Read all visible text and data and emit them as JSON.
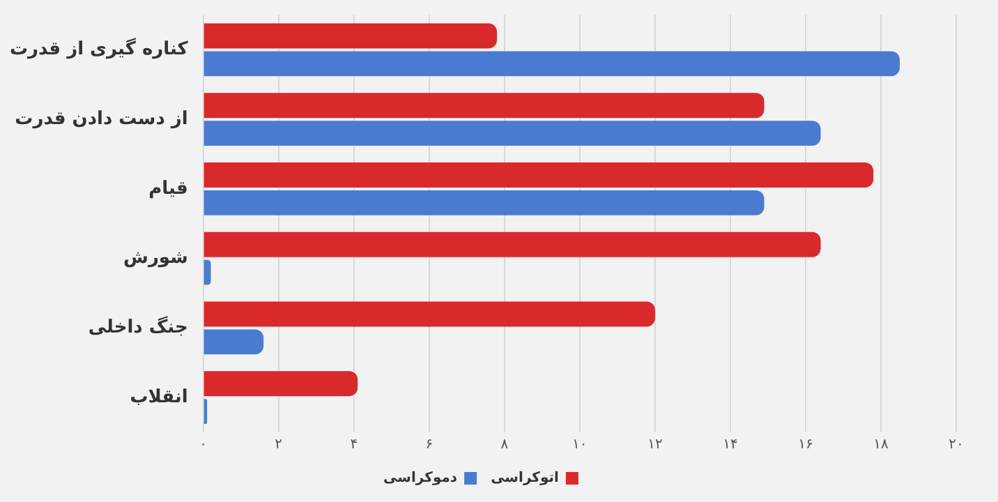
{
  "chart_data": {
    "type": "bar",
    "orientation": "horizontal",
    "categories": [
      "کناره گیری از قدرت",
      "از دست دادن قدرت",
      "قیام",
      "شورش",
      "جنگ داخلی",
      "انقلاب"
    ],
    "series": [
      {
        "name": "اتوکراسی",
        "color": "#d9292b",
        "values": [
          7.8,
          14.9,
          17.8,
          16.4,
          12,
          4.1
        ]
      },
      {
        "name": "دموکراسی",
        "color": "#4a7bd0",
        "values": [
          18.5,
          16.4,
          14.9,
          0.2,
          1.6,
          0.1
        ]
      }
    ],
    "xlim": [
      0,
      20
    ],
    "xticks": [
      {
        "value": 0,
        "label": "۰"
      },
      {
        "value": 2,
        "label": "۲"
      },
      {
        "value": 4,
        "label": "۴"
      },
      {
        "value": 6,
        "label": "۶"
      },
      {
        "value": 8,
        "label": "۸"
      },
      {
        "value": 10,
        "label": "۱۰"
      },
      {
        "value": 12,
        "label": "۱۲"
      },
      {
        "value": 14,
        "label": "۱۴"
      },
      {
        "value": 16,
        "label": "۱۶"
      },
      {
        "value": 18,
        "label": "۱۸"
      },
      {
        "value": 20,
        "label": "۲۰"
      }
    ],
    "grid": "x",
    "legend": "bottom"
  }
}
